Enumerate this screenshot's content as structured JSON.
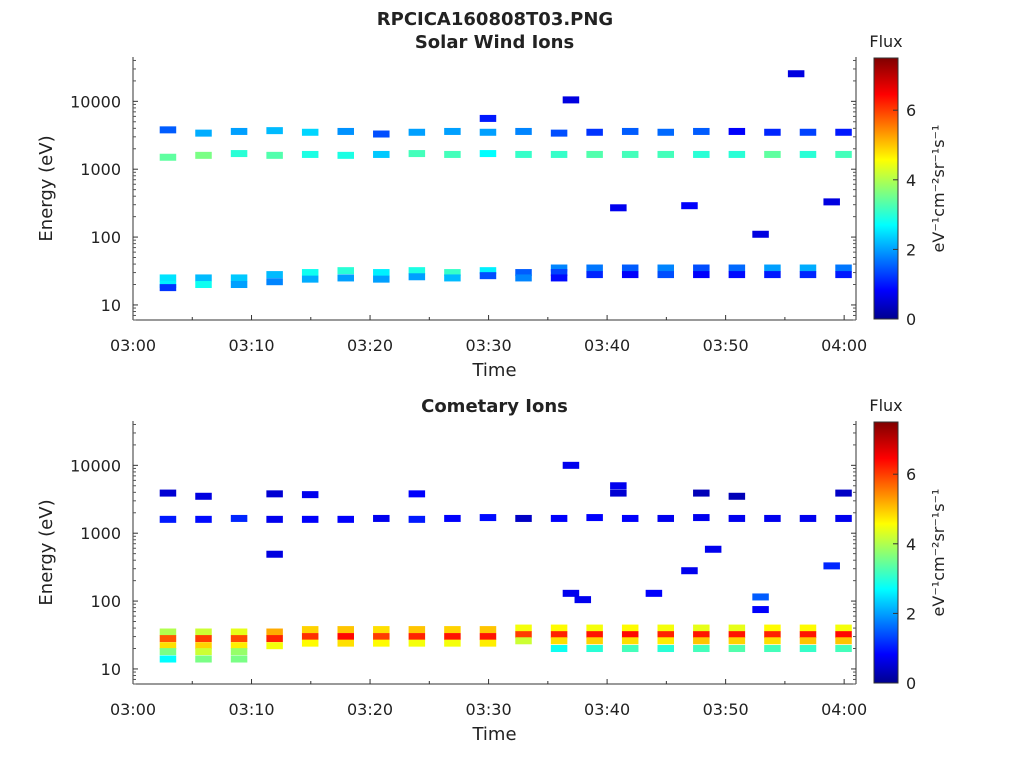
{
  "figure": {
    "title": "RPCICA160808T03.PNG"
  },
  "chart_data": [
    {
      "type": "heatmap",
      "title": "Solar Wind Ions",
      "xlabel": "Time",
      "ylabel": "Energy (eV)",
      "y_scale": "log",
      "xlim": [
        "03:00",
        "04:01"
      ],
      "ylim": [
        6,
        45000
      ],
      "x_tick_labels": [
        "03:00",
        "03:10",
        "03:20",
        "03:30",
        "03:40",
        "03:50",
        "04:00"
      ],
      "y_tick_values": [
        10,
        100,
        1000,
        10000
      ],
      "y_tick_labels": [
        "10",
        "100",
        "1000",
        "10000"
      ],
      "colorbar": {
        "label_top": "Flux",
        "units": "eV⁻¹cm⁻²sr⁻¹s⁻¹",
        "range": [
          0,
          7.5
        ],
        "tick_labels": [
          "0",
          "2",
          "4",
          "6"
        ],
        "tick_values": [
          0,
          2,
          4,
          6
        ],
        "colormap": "jet"
      },
      "cells": [
        [
          "03:02",
          25,
          2.5
        ],
        [
          "03:02",
          20,
          2.6
        ],
        [
          "03:02",
          18,
          1.2
        ],
        [
          "03:02",
          3800,
          1.5
        ],
        [
          "03:02",
          1500,
          3.4
        ],
        [
          "03:05",
          25,
          2.2
        ],
        [
          "03:05",
          20,
          2.8
        ],
        [
          "03:05",
          3400,
          2.1
        ],
        [
          "03:05",
          1600,
          3.6
        ],
        [
          "03:08",
          25,
          2.3
        ],
        [
          "03:08",
          20,
          2.0
        ],
        [
          "03:08",
          3600,
          2.0
        ],
        [
          "03:08",
          1700,
          3.0
        ],
        [
          "03:11",
          28,
          2.2
        ],
        [
          "03:11",
          22,
          1.8
        ],
        [
          "03:11",
          3700,
          2.2
        ],
        [
          "03:11",
          1600,
          3.3
        ],
        [
          "03:14",
          30,
          2.8
        ],
        [
          "03:14",
          24,
          2.1
        ],
        [
          "03:14",
          3500,
          2.4
        ],
        [
          "03:14",
          1650,
          2.9
        ],
        [
          "03:17",
          32,
          3.0
        ],
        [
          "03:17",
          25,
          2.0
        ],
        [
          "03:17",
          3600,
          1.9
        ],
        [
          "03:17",
          1600,
          2.9
        ],
        [
          "03:20",
          30,
          2.6
        ],
        [
          "03:20",
          24,
          2.0
        ],
        [
          "03:20",
          3300,
          1.4
        ],
        [
          "03:20",
          1650,
          2.3
        ],
        [
          "03:23",
          32,
          2.9
        ],
        [
          "03:23",
          26,
          2.0
        ],
        [
          "03:23",
          3500,
          2.0
        ],
        [
          "03:23",
          1700,
          3.2
        ],
        [
          "03:26",
          30,
          3.1
        ],
        [
          "03:26",
          25,
          2.2
        ],
        [
          "03:26",
          3600,
          2.0
        ],
        [
          "03:26",
          1650,
          3.2
        ],
        [
          "03:29",
          32,
          2.6
        ],
        [
          "03:29",
          27,
          1.4
        ],
        [
          "03:29",
          5600,
          1.0
        ],
        [
          "03:29",
          3500,
          2.0
        ],
        [
          "03:29",
          1700,
          2.7
        ],
        [
          "03:32",
          30,
          1.5
        ],
        [
          "03:32",
          25,
          1.8
        ],
        [
          "03:32",
          3600,
          1.8
        ],
        [
          "03:32",
          1650,
          3.1
        ],
        [
          "03:35",
          35,
          1.8
        ],
        [
          "03:35",
          30,
          1.3
        ],
        [
          "03:35",
          25,
          0.9
        ],
        [
          "03:35",
          3400,
          1.4
        ],
        [
          "03:35",
          1650,
          3.1
        ],
        [
          "03:38",
          35,
          1.7
        ],
        [
          "03:38",
          28,
          1.1
        ],
        [
          "03:38",
          3500,
          1.2
        ],
        [
          "03:38",
          1650,
          3.3
        ],
        [
          "03:41",
          35,
          1.5
        ],
        [
          "03:41",
          28,
          0.8
        ],
        [
          "03:41",
          3600,
          1.5
        ],
        [
          "03:41",
          1650,
          3.2
        ],
        [
          "03:44",
          35,
          1.8
        ],
        [
          "03:44",
          28,
          1.4
        ],
        [
          "03:44",
          3500,
          1.6
        ],
        [
          "03:44",
          1650,
          3.2
        ],
        [
          "03:47",
          35,
          1.4
        ],
        [
          "03:47",
          28,
          0.8
        ],
        [
          "03:47",
          3600,
          1.5
        ],
        [
          "03:47",
          1650,
          3.0
        ],
        [
          "03:50",
          35,
          1.6
        ],
        [
          "03:50",
          28,
          0.9
        ],
        [
          "03:50",
          3600,
          0.8
        ],
        [
          "03:50",
          1650,
          3.0
        ],
        [
          "03:53",
          35,
          2.0
        ],
        [
          "03:53",
          28,
          1.0
        ],
        [
          "03:53",
          3500,
          1.1
        ],
        [
          "03:53",
          1650,
          3.4
        ],
        [
          "03:56",
          35,
          2.1
        ],
        [
          "03:56",
          28,
          1.1
        ],
        [
          "03:56",
          3500,
          1.3
        ],
        [
          "03:56",
          1650,
          3.0
        ],
        [
          "03:59",
          35,
          1.7
        ],
        [
          "03:59",
          28,
          1.0
        ],
        [
          "03:59",
          3500,
          1.0
        ],
        [
          "03:59",
          1650,
          3.2
        ],
        [
          "03:36",
          10500,
          0.6
        ],
        [
          "03:40",
          270,
          0.7
        ],
        [
          "03:46",
          290,
          0.8
        ],
        [
          "03:52",
          110,
          0.6
        ],
        [
          "03:55",
          25500,
          0.6
        ],
        [
          "03:58",
          330,
          0.6
        ]
      ]
    },
    {
      "type": "heatmap",
      "title": "Cometary Ions",
      "xlabel": "Time",
      "ylabel": "Energy (eV)",
      "y_scale": "log",
      "xlim": [
        "03:00",
        "04:01"
      ],
      "ylim": [
        6,
        45000
      ],
      "x_tick_labels": [
        "03:00",
        "03:10",
        "03:20",
        "03:30",
        "03:40",
        "03:50",
        "04:00"
      ],
      "y_tick_values": [
        10,
        100,
        1000,
        10000
      ],
      "y_tick_labels": [
        "10",
        "100",
        "1000",
        "10000"
      ],
      "colorbar": {
        "label_top": "Flux",
        "units": "eV⁻¹cm⁻²sr⁻¹s⁻¹",
        "range": [
          0,
          7.5
        ],
        "tick_labels": [
          "0",
          "2",
          "4",
          "6"
        ],
        "tick_values": [
          0,
          2,
          4,
          6
        ],
        "colormap": "jet"
      },
      "cells": [
        [
          "03:02",
          35,
          4.0
        ],
        [
          "03:02",
          28,
          5.8
        ],
        [
          "03:02",
          22,
          4.8
        ],
        [
          "03:02",
          18,
          3.6
        ],
        [
          "03:02",
          14,
          2.7
        ],
        [
          "03:02",
          3900,
          0.5
        ],
        [
          "03:02",
          1600,
          1.0
        ],
        [
          "03:05",
          35,
          4.2
        ],
        [
          "03:05",
          28,
          6.0
        ],
        [
          "03:05",
          22,
          4.9
        ],
        [
          "03:05",
          18,
          4.2
        ],
        [
          "03:05",
          14,
          3.6
        ],
        [
          "03:05",
          3500,
          0.6
        ],
        [
          "03:05",
          1600,
          0.9
        ],
        [
          "03:08",
          35,
          4.4
        ],
        [
          "03:08",
          28,
          5.9
        ],
        [
          "03:08",
          22,
          4.7
        ],
        [
          "03:08",
          18,
          3.8
        ],
        [
          "03:08",
          14,
          3.6
        ],
        [
          "03:08",
          1650,
          1.1
        ],
        [
          "03:11",
          35,
          5.2
        ],
        [
          "03:11",
          28,
          6.2
        ],
        [
          "03:11",
          22,
          4.5
        ],
        [
          "03:11",
          3800,
          0.5
        ],
        [
          "03:11",
          1600,
          0.7
        ],
        [
          "03:11",
          490,
          0.6
        ],
        [
          "03:14",
          38,
          4.9
        ],
        [
          "03:14",
          30,
          6.1
        ],
        [
          "03:14",
          24,
          4.6
        ],
        [
          "03:14",
          3700,
          0.7
        ],
        [
          "03:14",
          1600,
          0.8
        ],
        [
          "03:17",
          38,
          5.0
        ],
        [
          "03:17",
          30,
          6.4
        ],
        [
          "03:17",
          24,
          4.8
        ],
        [
          "03:17",
          1600,
          0.8
        ],
        [
          "03:20",
          38,
          4.8
        ],
        [
          "03:20",
          30,
          6.0
        ],
        [
          "03:20",
          24,
          4.6
        ],
        [
          "03:20",
          1650,
          0.7
        ],
        [
          "03:23",
          38,
          5.0
        ],
        [
          "03:23",
          30,
          6.2
        ],
        [
          "03:23",
          24,
          4.5
        ],
        [
          "03:23",
          3800,
          0.8
        ],
        [
          "03:23",
          1600,
          1.0
        ],
        [
          "03:26",
          38,
          4.9
        ],
        [
          "03:26",
          30,
          6.3
        ],
        [
          "03:26",
          24,
          4.5
        ],
        [
          "03:26",
          1650,
          0.8
        ],
        [
          "03:29",
          38,
          5.0
        ],
        [
          "03:29",
          30,
          6.3
        ],
        [
          "03:29",
          24,
          4.7
        ],
        [
          "03:29",
          1700,
          0.9
        ],
        [
          "03:32",
          40,
          4.5
        ],
        [
          "03:32",
          32,
          6.0
        ],
        [
          "03:32",
          26,
          4.2
        ],
        [
          "03:32",
          1650,
          0.4
        ],
        [
          "03:35",
          40,
          4.6
        ],
        [
          "03:35",
          32,
          6.2
        ],
        [
          "03:35",
          26,
          4.8
        ],
        [
          "03:35",
          20,
          2.8
        ],
        [
          "03:35",
          1650,
          0.8
        ],
        [
          "03:38",
          40,
          4.5
        ],
        [
          "03:38",
          32,
          6.3
        ],
        [
          "03:38",
          26,
          4.9
        ],
        [
          "03:38",
          20,
          3.0
        ],
        [
          "03:38",
          1700,
          0.8
        ],
        [
          "03:41",
          40,
          4.6
        ],
        [
          "03:41",
          32,
          6.4
        ],
        [
          "03:41",
          26,
          4.8
        ],
        [
          "03:41",
          20,
          3.2
        ],
        [
          "03:41",
          1650,
          0.8
        ],
        [
          "03:44",
          40,
          4.5
        ],
        [
          "03:44",
          32,
          6.2
        ],
        [
          "03:44",
          26,
          4.7
        ],
        [
          "03:44",
          20,
          3.0
        ],
        [
          "03:44",
          1650,
          0.7
        ],
        [
          "03:47",
          40,
          4.4
        ],
        [
          "03:47",
          32,
          6.3
        ],
        [
          "03:47",
          26,
          5.0
        ],
        [
          "03:47",
          20,
          3.2
        ],
        [
          "03:47",
          3900,
          0.3
        ],
        [
          "03:47",
          1700,
          0.7
        ],
        [
          "03:50",
          40,
          4.4
        ],
        [
          "03:50",
          32,
          6.3
        ],
        [
          "03:50",
          26,
          4.9
        ],
        [
          "03:50",
          20,
          3.3
        ],
        [
          "03:50",
          3500,
          0.3
        ],
        [
          "03:50",
          1650,
          0.7
        ],
        [
          "03:53",
          40,
          4.6
        ],
        [
          "03:53",
          32,
          6.2
        ],
        [
          "03:53",
          26,
          4.8
        ],
        [
          "03:53",
          20,
          3.2
        ],
        [
          "03:53",
          1650,
          0.7
        ],
        [
          "03:56",
          40,
          4.6
        ],
        [
          "03:56",
          32,
          6.3
        ],
        [
          "03:56",
          26,
          5.0
        ],
        [
          "03:56",
          20,
          3.1
        ],
        [
          "03:56",
          1650,
          0.7
        ],
        [
          "03:59",
          40,
          4.5
        ],
        [
          "03:59",
          32,
          6.4
        ],
        [
          "03:59",
          26,
          5.0
        ],
        [
          "03:59",
          20,
          3.2
        ],
        [
          "03:59",
          3900,
          0.4
        ],
        [
          "03:59",
          1650,
          0.7
        ],
        [
          "03:36",
          10000,
          0.7
        ],
        [
          "03:36",
          130,
          0.7
        ],
        [
          "03:37",
          105,
          0.7
        ],
        [
          "03:40",
          5000,
          0.7
        ],
        [
          "03:43",
          130,
          0.8
        ],
        [
          "03:48",
          580,
          0.7
        ],
        [
          "03:46",
          280,
          0.7
        ],
        [
          "03:52",
          115,
          1.5
        ],
        [
          "03:52",
          75,
          0.8
        ],
        [
          "03:58",
          330,
          1.1
        ],
        [
          "03:40",
          3900,
          0.5
        ]
      ]
    }
  ]
}
